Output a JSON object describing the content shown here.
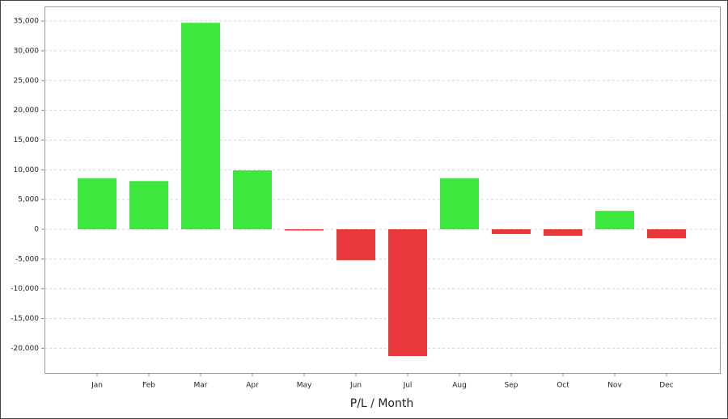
{
  "chart_data": {
    "type": "bar",
    "x_label": "P/L / Month",
    "categories": [
      "Jan",
      "Feb",
      "Mar",
      "Apr",
      "May",
      "Jun",
      "Jul",
      "Aug",
      "Sep",
      "Oct",
      "Nov",
      "Dec"
    ],
    "values": [
      8600,
      8100,
      34700,
      9900,
      -200,
      -5200,
      -21300,
      8600,
      -800,
      -1100,
      3100,
      -1500
    ],
    "positive_color": "#3de83d",
    "negative_color": "#e8383c",
    "ylim": [
      -24150,
      37450
    ],
    "yticks": [
      {
        "value": -20000,
        "label": "-20,000"
      },
      {
        "value": -15000,
        "label": "-15,000"
      },
      {
        "value": -10000,
        "label": "-10,000"
      },
      {
        "value": -5000,
        "label": "-5,000"
      },
      0,
      {
        "value": 5000,
        "label": "5,000"
      },
      {
        "value": 10000,
        "label": "10,000"
      },
      {
        "value": 15000,
        "label": "15,000"
      },
      {
        "value": 20000,
        "label": "20,000"
      },
      {
        "value": 25000,
        "label": "25,000"
      },
      {
        "value": 30000,
        "label": "30,000"
      },
      {
        "value": 35000,
        "label": "35,000"
      }
    ],
    "grid": true
  }
}
